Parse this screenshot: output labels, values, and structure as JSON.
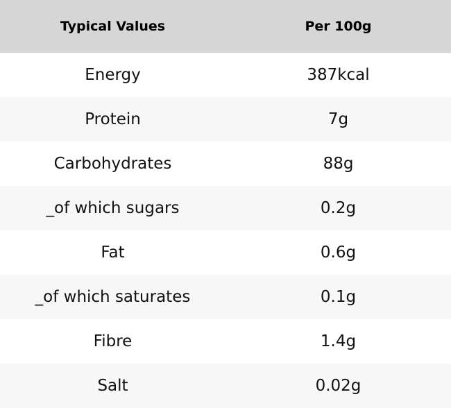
{
  "table": {
    "headers": [
      "Typical Values",
      "Per 100g"
    ],
    "rows": [
      [
        "Energy",
        "387kcal"
      ],
      [
        "Protein",
        "7g"
      ],
      [
        "Carbohydrates",
        "88g"
      ],
      [
        "_of which sugars",
        "0.2g"
      ],
      [
        "Fat",
        "0.6g"
      ],
      [
        "_of which saturates",
        "0.1g"
      ],
      [
        "Fibre",
        "1.4g"
      ],
      [
        "Salt",
        "0.02g"
      ]
    ],
    "colors": {
      "header_background": "#d6d6d6",
      "row_background": "#ffffff",
      "alt_row_background": "#f7f7f7"
    }
  }
}
